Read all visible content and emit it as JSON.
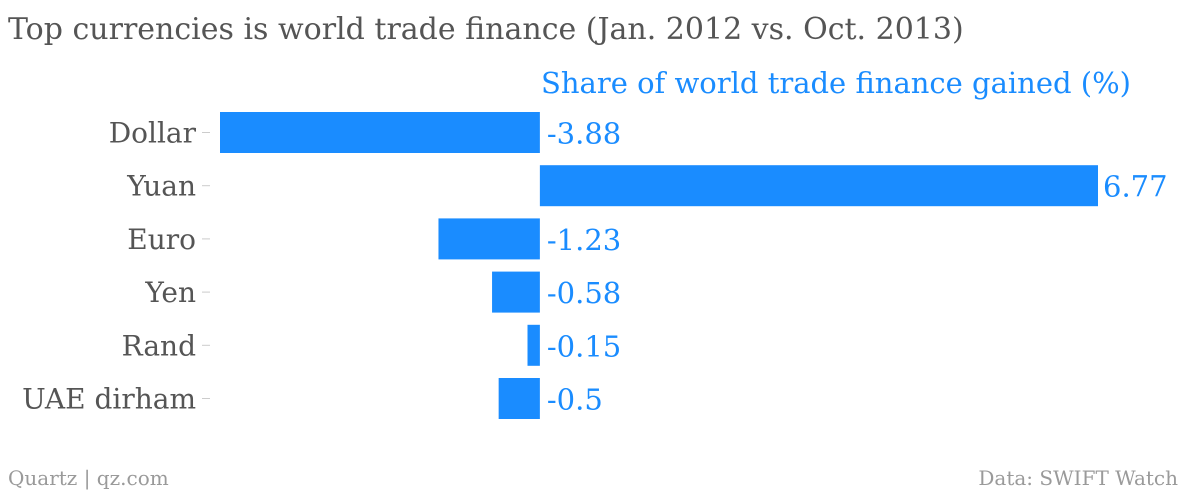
{
  "title": "Top currencies is world trade finance (Jan. 2012 vs. Oct. 2013)",
  "footer": {
    "source_credit": "Quartz | qz.com",
    "data_credit": "Data: SWIFT Watch"
  },
  "colors": {
    "bar": "#1a8cff",
    "category_text": "#555555",
    "footer_text": "#9a9a9a"
  },
  "chart_data": {
    "type": "bar",
    "orientation": "horizontal",
    "title": "Top currencies is world trade finance (Jan. 2012 vs. Oct. 2013)",
    "series": [
      {
        "name": "Share of world trade finance gained (%)",
        "values": [
          -3.88,
          6.77,
          -1.23,
          -0.58,
          -0.15,
          -0.5
        ],
        "labels": [
          "-3.88",
          "6.77",
          "-1.23",
          "-0.58",
          "-0.15",
          "-0.5"
        ]
      }
    ],
    "categories": [
      "Dollar",
      "Yuan",
      "Euro",
      "Yen",
      "Rand",
      "UAE dirham"
    ],
    "xlim": [
      -3.88,
      6.77
    ],
    "grid": false,
    "legend": "top"
  }
}
